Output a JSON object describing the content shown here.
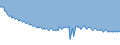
{
  "chart_data": {
    "type": "area",
    "color": "#3a80c0",
    "tick_labels": false,
    "grid": false,
    "xlim": [
      0,
      101
    ],
    "ylim": [
      0,
      32
    ],
    "x": [
      0,
      1,
      2,
      3,
      4,
      5,
      6,
      7,
      8,
      9,
      10,
      11,
      12,
      13,
      14,
      15,
      16,
      17,
      18,
      19,
      20,
      21,
      22,
      23,
      24,
      25,
      26,
      27,
      28,
      29,
      30,
      31,
      32,
      33,
      34,
      35,
      36,
      37,
      38,
      39,
      40,
      41,
      42,
      43,
      44,
      45,
      46,
      47,
      48,
      49,
      50,
      51,
      52,
      53,
      54,
      55,
      56,
      57,
      58,
      59,
      60,
      61,
      62,
      63,
      64,
      65,
      66,
      67,
      68,
      69,
      70,
      71,
      72,
      73,
      74,
      75,
      76,
      77,
      78,
      79,
      80,
      81,
      82,
      83,
      84,
      85,
      86,
      87,
      88,
      89,
      90,
      91,
      92,
      93,
      94,
      95,
      96,
      97,
      98,
      99,
      100,
      101
    ],
    "values": [
      27,
      27,
      27,
      27,
      24,
      24,
      22,
      21,
      20,
      21,
      19,
      20,
      19,
      18,
      19,
      18,
      17,
      18,
      17,
      16,
      17,
      16,
      15,
      16,
      15,
      14,
      15,
      14,
      13,
      14,
      13,
      12,
      13,
      12,
      13,
      12,
      11,
      12,
      11,
      12,
      11,
      10,
      11,
      12,
      11,
      10,
      11,
      10,
      11,
      10,
      13,
      12,
      11,
      12,
      13,
      12,
      13,
      12,
      13,
      4,
      8,
      12,
      6,
      10,
      13,
      14,
      12,
      13,
      11,
      12,
      13,
      14,
      12,
      11,
      12,
      13,
      12,
      11,
      10,
      11,
      12,
      11,
      10,
      11,
      10,
      11,
      10,
      9,
      10,
      11,
      10,
      9,
      10,
      9,
      10,
      9,
      10,
      9,
      10,
      9,
      10,
      9
    ]
  }
}
